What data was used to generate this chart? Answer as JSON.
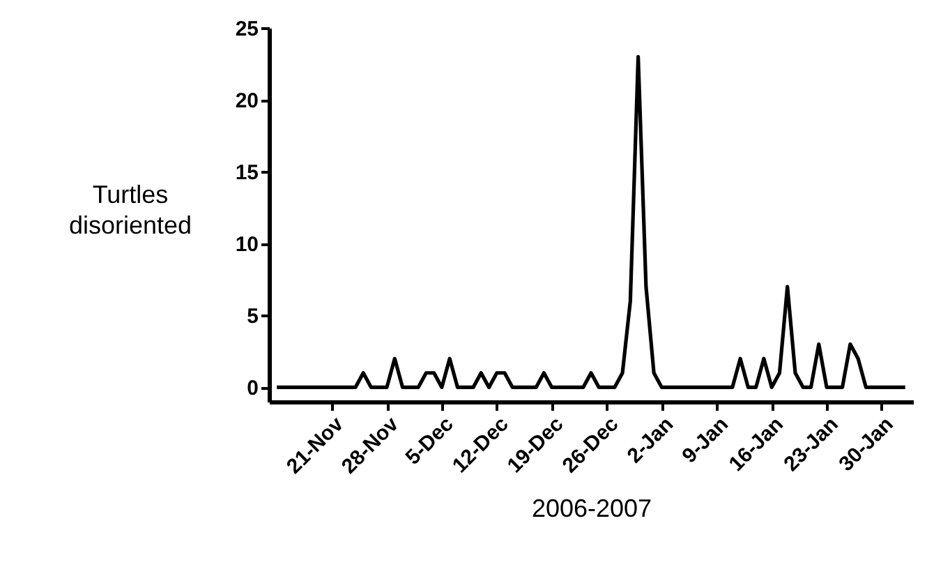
{
  "chart_data": {
    "type": "line",
    "xlabel": "2006-2007",
    "ylabel": "Turtles disoriented",
    "x": [
      "2006-11-14",
      "2006-11-15",
      "2006-11-16",
      "2006-11-17",
      "2006-11-18",
      "2006-11-19",
      "2006-11-20",
      "2006-11-21",
      "2006-11-22",
      "2006-11-23",
      "2006-11-24",
      "2006-11-25",
      "2006-11-26",
      "2006-11-27",
      "2006-11-28",
      "2006-11-29",
      "2006-11-30",
      "2006-12-01",
      "2006-12-02",
      "2006-12-03",
      "2006-12-04",
      "2006-12-05",
      "2006-12-06",
      "2006-12-07",
      "2006-12-08",
      "2006-12-09",
      "2006-12-10",
      "2006-12-11",
      "2006-12-12",
      "2006-12-13",
      "2006-12-14",
      "2006-12-15",
      "2006-12-16",
      "2006-12-17",
      "2006-12-18",
      "2006-12-19",
      "2006-12-20",
      "2006-12-21",
      "2006-12-22",
      "2006-12-23",
      "2006-12-24",
      "2006-12-25",
      "2006-12-26",
      "2006-12-27",
      "2006-12-28",
      "2006-12-29",
      "2006-12-30",
      "2006-12-31",
      "2007-01-01",
      "2007-01-02",
      "2007-01-03",
      "2007-01-04",
      "2007-01-05",
      "2007-01-06",
      "2007-01-07",
      "2007-01-08",
      "2007-01-09",
      "2007-01-10",
      "2007-01-11",
      "2007-01-12",
      "2007-01-13",
      "2007-01-14",
      "2007-01-15",
      "2007-01-16",
      "2007-01-17",
      "2007-01-18",
      "2007-01-19",
      "2007-01-20",
      "2007-01-21",
      "2007-01-22",
      "2007-01-23",
      "2007-01-24",
      "2007-01-25",
      "2007-01-26",
      "2007-01-27",
      "2007-01-28",
      "2007-01-29",
      "2007-01-30",
      "2007-01-31",
      "2007-02-01",
      "2007-02-02"
    ],
    "series": [
      {
        "color": "#000000",
        "values": [
          0,
          0,
          0,
          0,
          0,
          0,
          0,
          0,
          0,
          0,
          0,
          1,
          0,
          0,
          0,
          2,
          0,
          0,
          0,
          1,
          1,
          0,
          2,
          0,
          0,
          0,
          1,
          0,
          1,
          1,
          0,
          0,
          0,
          0,
          1,
          0,
          0,
          0,
          0,
          0,
          1,
          0,
          0,
          0,
          1,
          6,
          23,
          7,
          1,
          0,
          0,
          0,
          0,
          0,
          0,
          0,
          0,
          0,
          0,
          2,
          0,
          0,
          2,
          0,
          1,
          7,
          1,
          0,
          0,
          3,
          0,
          0,
          0,
          3,
          2,
          0,
          0,
          0,
          0,
          0,
          0
        ]
      }
    ],
    "xlim": [
      "2006-11-13",
      "2007-02-03"
    ],
    "xticks": [
      {
        "value": "2006-11-21",
        "label": "21-Nov"
      },
      {
        "value": "2006-11-28",
        "label": "28-Nov"
      },
      {
        "value": "2006-12-05",
        "label": "5-Dec"
      },
      {
        "value": "2006-12-12",
        "label": "12-Dec"
      },
      {
        "value": "2006-12-19",
        "label": "19-Dec"
      },
      {
        "value": "2006-12-26",
        "label": "26-Dec"
      },
      {
        "value": "2007-01-02",
        "label": "2-Jan"
      },
      {
        "value": "2007-01-09",
        "label": "9-Jan"
      },
      {
        "value": "2007-01-16",
        "label": "16-Jan"
      },
      {
        "value": "2007-01-23",
        "label": "23-Jan"
      },
      {
        "value": "2007-01-30",
        "label": "30-Jan"
      }
    ],
    "ylim": [
      -1,
      25
    ],
    "yticks": [
      0,
      5,
      10,
      15,
      20,
      25
    ],
    "grid": false,
    "marker": "none",
    "line_style": "solid"
  }
}
